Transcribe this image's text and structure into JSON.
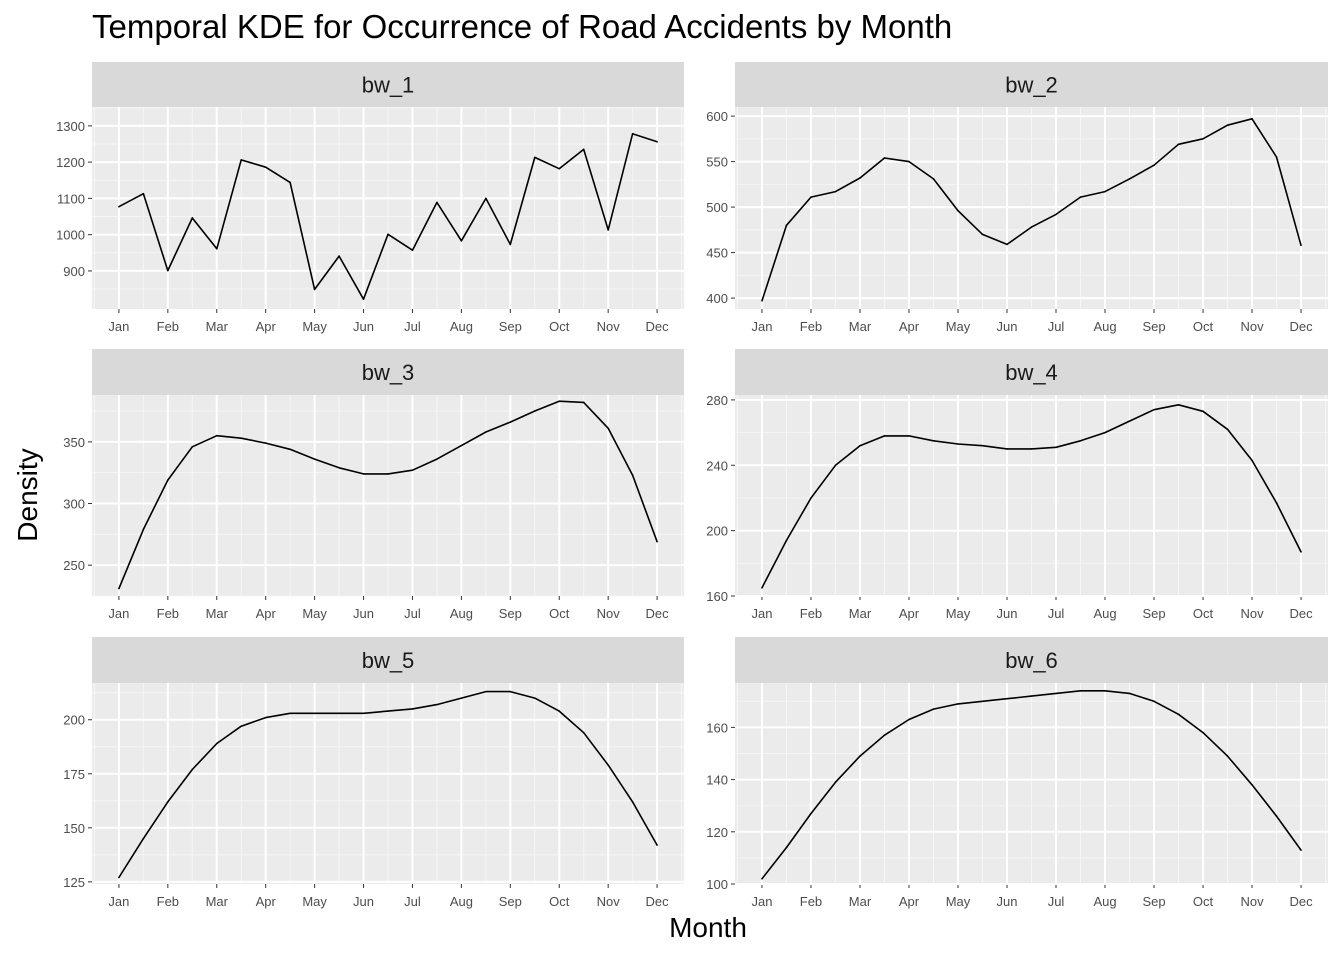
{
  "title": "Temporal KDE for Occurrence of Road Accidents by Month",
  "xlabel": "Month",
  "ylabel": "Density",
  "chart_data": [
    {
      "type": "line",
      "facet": "bw_1",
      "x_ticks": [
        "Jan",
        "Feb",
        "Mar",
        "Apr",
        "May",
        "Jun",
        "Jul",
        "Aug",
        "Sep",
        "Oct",
        "Nov",
        "Dec"
      ],
      "x": [
        1,
        1.5,
        2,
        2.5,
        3,
        3.5,
        4,
        4.5,
        5,
        5.5,
        6,
        6.5,
        7,
        7.5,
        8,
        8.5,
        9,
        9.5,
        10,
        10.5,
        11,
        11.5,
        12
      ],
      "values": [
        1077,
        1113,
        901,
        1046,
        961,
        1206,
        1186,
        1144,
        849,
        941,
        822,
        1001,
        957,
        1089,
        983,
        1100,
        973,
        1213,
        1182,
        1235,
        1013,
        1278,
        1256
      ],
      "yticks": [
        900,
        1000,
        1100,
        1200,
        1300
      ],
      "ylim": [
        795,
        1352
      ]
    },
    {
      "type": "line",
      "facet": "bw_2",
      "x_ticks": [
        "Jan",
        "Feb",
        "Mar",
        "Apr",
        "May",
        "Jun",
        "Jul",
        "Aug",
        "Sep",
        "Oct",
        "Nov",
        "Dec"
      ],
      "x": [
        1,
        1.5,
        2,
        2.5,
        3,
        3.5,
        4,
        4.5,
        5,
        5.5,
        6,
        6.5,
        7,
        7.5,
        8,
        8.5,
        9,
        9.5,
        10,
        10.5,
        11,
        11.5,
        12
      ],
      "values": [
        397,
        480,
        511,
        517,
        532,
        554,
        550,
        531,
        496,
        470,
        459,
        478,
        492,
        511,
        517,
        531,
        546,
        569,
        575,
        590,
        597,
        555,
        458
      ],
      "yticks": [
        400,
        450,
        500,
        550,
        600
      ],
      "ylim": [
        388,
        610
      ]
    },
    {
      "type": "line",
      "facet": "bw_3",
      "x_ticks": [
        "Jan",
        "Feb",
        "Mar",
        "Apr",
        "May",
        "Jun",
        "Jul",
        "Aug",
        "Sep",
        "Oct",
        "Nov",
        "Dec"
      ],
      "x": [
        1,
        1.5,
        2,
        2.5,
        3,
        3.5,
        4,
        4.5,
        5,
        5.5,
        6,
        6.5,
        7,
        7.5,
        8,
        8.5,
        9,
        9.5,
        10,
        10.5,
        11,
        11.5,
        12
      ],
      "values": [
        231,
        279,
        319,
        346,
        355,
        353,
        349,
        344,
        336,
        329,
        324,
        324,
        327,
        336,
        347,
        358,
        366,
        375,
        383,
        382,
        361,
        323,
        269
      ],
      "yticks": [
        250,
        300,
        350
      ],
      "ylim": [
        225,
        388
      ]
    },
    {
      "type": "line",
      "facet": "bw_4",
      "x_ticks": [
        "Jan",
        "Feb",
        "Mar",
        "Apr",
        "May",
        "Jun",
        "Jul",
        "Aug",
        "Sep",
        "Oct",
        "Nov",
        "Dec"
      ],
      "x": [
        1,
        1.5,
        2,
        2.5,
        3,
        3.5,
        4,
        4.5,
        5,
        5.5,
        6,
        6.5,
        7,
        7.5,
        8,
        8.5,
        9,
        9.5,
        10,
        10.5,
        11,
        11.5,
        12
      ],
      "values": [
        165,
        194,
        220,
        240,
        252,
        258,
        258,
        255,
        253,
        252,
        250,
        250,
        251,
        255,
        260,
        267,
        274,
        277,
        273,
        262,
        243,
        217,
        187
      ],
      "yticks": [
        160,
        200,
        240,
        280
      ],
      "ylim": [
        160,
        283
      ]
    },
    {
      "type": "line",
      "facet": "bw_5",
      "x_ticks": [
        "Jan",
        "Feb",
        "Mar",
        "Apr",
        "May",
        "Jun",
        "Jul",
        "Aug",
        "Sep",
        "Oct",
        "Nov",
        "Dec"
      ],
      "x": [
        1,
        1.5,
        2,
        2.5,
        3,
        3.5,
        4,
        4.5,
        5,
        5.5,
        6,
        6.5,
        7,
        7.5,
        8,
        8.5,
        9,
        9.5,
        10,
        10.5,
        11,
        11.5,
        12
      ],
      "values": [
        127,
        145,
        162,
        177,
        189,
        197,
        201,
        203,
        203,
        203,
        203,
        204,
        205,
        207,
        210,
        213,
        213,
        210,
        204,
        194,
        179,
        162,
        142
      ],
      "yticks": [
        125,
        150,
        175,
        200
      ],
      "ylim": [
        124,
        217
      ]
    },
    {
      "type": "line",
      "facet": "bw_6",
      "x_ticks": [
        "Jan",
        "Feb",
        "Mar",
        "Apr",
        "May",
        "Jun",
        "Jul",
        "Aug",
        "Sep",
        "Oct",
        "Nov",
        "Dec"
      ],
      "x": [
        1,
        1.5,
        2,
        2.5,
        3,
        3.5,
        4,
        4.5,
        5,
        5.5,
        6,
        6.5,
        7,
        7.5,
        8,
        8.5,
        9,
        9.5,
        10,
        10.5,
        11,
        11.5,
        12
      ],
      "values": [
        102,
        114,
        127,
        139,
        149,
        157,
        163,
        167,
        169,
        170,
        171,
        172,
        173,
        174,
        174,
        173,
        170,
        165,
        158,
        149,
        138,
        126,
        113
      ],
      "yticks": [
        100,
        120,
        140,
        160
      ],
      "ylim": [
        100,
        177
      ]
    }
  ]
}
